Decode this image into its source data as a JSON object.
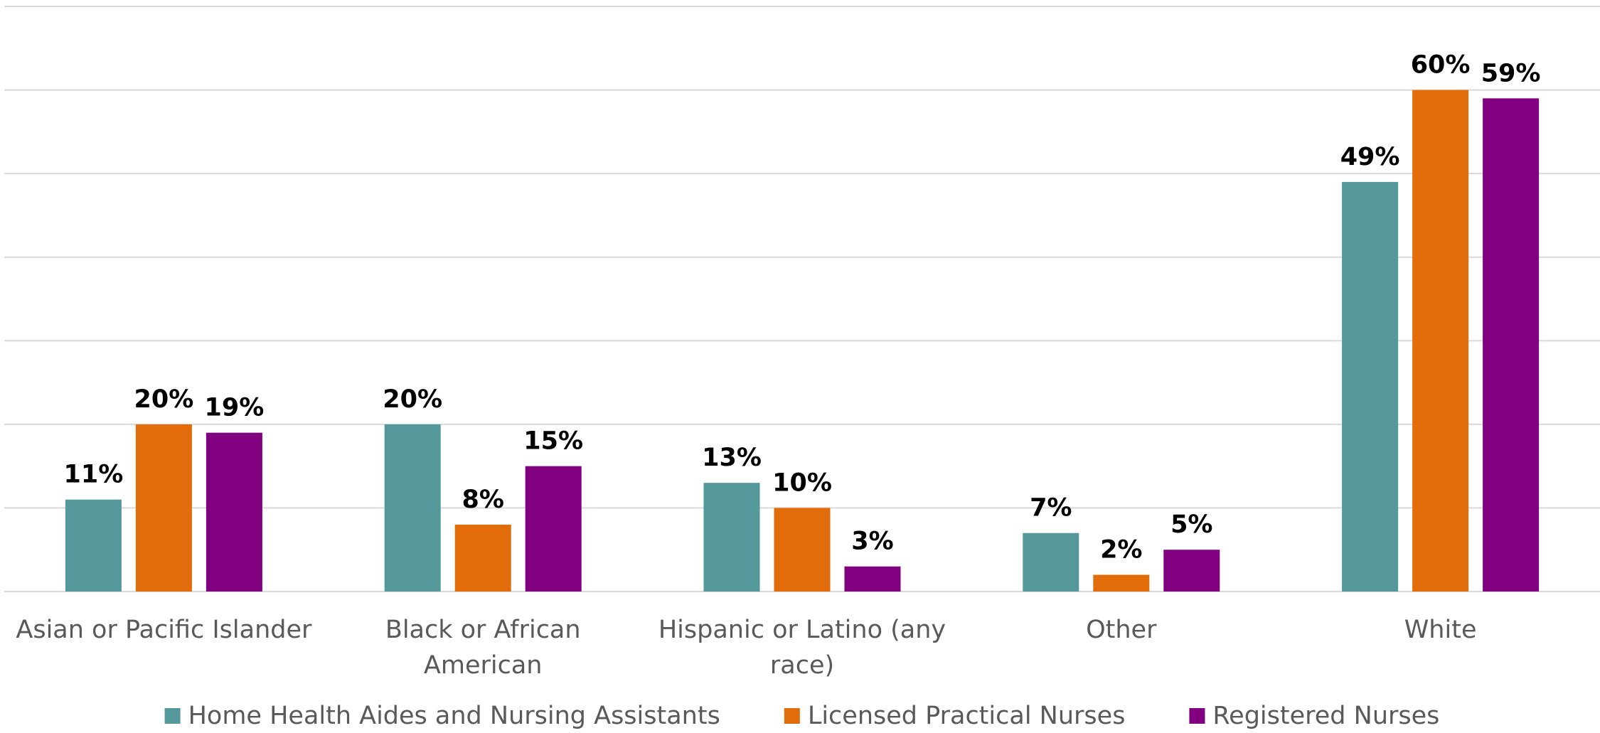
{
  "chart_data": {
    "type": "bar",
    "categories": [
      "Asian or Pacific Islander",
      "Black or African American",
      "Hispanic or Latino (any race)",
      "Other",
      "White"
    ],
    "series": [
      {
        "name": "Home Health Aides and Nursing Assistants",
        "color": "#54989c",
        "values": [
          11,
          20,
          13,
          7,
          49
        ],
        "value_labels": [
          "11%",
          "20%",
          "13%",
          "7%",
          "49%"
        ]
      },
      {
        "name": "Licensed Practical Nurses",
        "color": "#e36c0a",
        "values": [
          20,
          8,
          10,
          2,
          60
        ],
        "value_labels": [
          "20%",
          "8%",
          "10%",
          "2%",
          "60%"
        ]
      },
      {
        "name": "Registered Nurses",
        "color": "#800080",
        "values": [
          19,
          15,
          3,
          5,
          59
        ],
        "value_labels": [
          "19%",
          "15%",
          "3%",
          "5%",
          "59%"
        ]
      }
    ],
    "ylim": [
      0,
      70
    ],
    "yticks": [
      0,
      10,
      20,
      30,
      40,
      50,
      60,
      70
    ],
    "grid": true,
    "legend": "bottom"
  }
}
